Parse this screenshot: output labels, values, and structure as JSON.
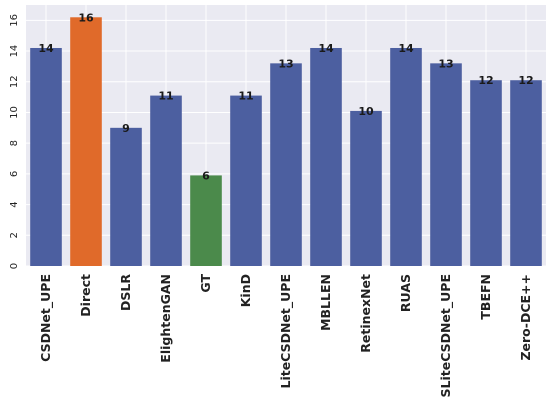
{
  "chart_data": {
    "type": "bar",
    "title": "",
    "xlabel": "",
    "ylabel": "",
    "categories": [
      "CSDNet_UPE",
      "Direct",
      "DSLR",
      "ElightenGAN",
      "GT",
      "KinD",
      "LiteCSDNet_UPE",
      "MBLLEN",
      "RetinexNet",
      "RUAS",
      "SLiteCSDNet_UPE",
      "TBEFN",
      "Zero-DCE++"
    ],
    "values": [
      14,
      16,
      9,
      11,
      6,
      11,
      13,
      14,
      10,
      14,
      13,
      12,
      12
    ],
    "actual_values": [
      14.2,
      16.2,
      9.0,
      11.1,
      5.9,
      11.1,
      13.2,
      14.2,
      10.1,
      14.2,
      13.2,
      12.1,
      12.1
    ],
    "data_labels": [
      "14",
      "16",
      "9",
      "11",
      "6",
      "11",
      "13",
      "14",
      "10",
      "14",
      "13",
      "12",
      "12"
    ],
    "bar_colors": [
      "#4c5fa0",
      "#e06a2a",
      "#4c5fa0",
      "#4c5fa0",
      "#4b8a4b",
      "#4c5fa0",
      "#4c5fa0",
      "#4c5fa0",
      "#4c5fa0",
      "#4c5fa0",
      "#4c5fa0",
      "#4c5fa0",
      "#4c5fa0"
    ],
    "yticks": [
      0,
      2,
      4,
      6,
      8,
      10,
      12,
      14,
      16
    ],
    "ylim": [
      0,
      17
    ],
    "grid": true,
    "legend": "none",
    "background_color": "#eaeaf2",
    "grid_color": "#ffffff"
  }
}
